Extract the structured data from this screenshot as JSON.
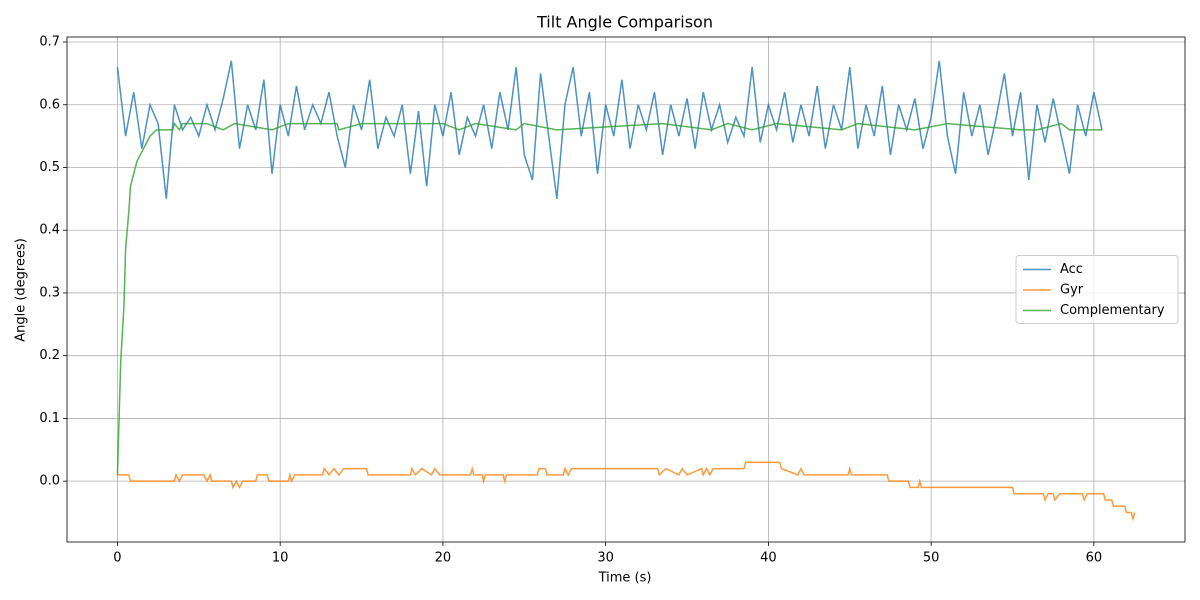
{
  "chart_data": {
    "type": "line",
    "title": "Tilt Angle Comparison",
    "x_label": "Time (s)",
    "y_label": "Angle (degrees)",
    "xlim": [
      -3.1,
      65.6
    ],
    "ylim": [
      -0.097,
      0.708
    ],
    "xticks": [
      0,
      10,
      20,
      30,
      40,
      50,
      60
    ],
    "yticks": [
      {
        "value": 0,
        "label": "0.0"
      },
      0.1,
      0.2,
      0.3,
      0.4,
      0.5,
      0.6,
      0.7
    ],
    "grid": true,
    "legend": "center right",
    "series": [
      {
        "name": "Acc",
        "color": "#1f77b4",
        "x": [
          0,
          0.5,
          1,
          1.5,
          2,
          2.5,
          3,
          3.5,
          4,
          4.5,
          5,
          5.5,
          6,
          6.5,
          7,
          7.5,
          8,
          8.5,
          9,
          9.5,
          10,
          10.5,
          11,
          11.5,
          12,
          12.5,
          13,
          13.5,
          14,
          14.5,
          15,
          15.5,
          16,
          16.5,
          17,
          17.5,
          18,
          18.5,
          19,
          19.5,
          20,
          20.5,
          21,
          21.5,
          22,
          22.5,
          23,
          23.5,
          24,
          24.5,
          25,
          25.5,
          26,
          26.5,
          27,
          27.5,
          28,
          28.5,
          29,
          29.5,
          30,
          30.5,
          31,
          31.5,
          32,
          32.5,
          33,
          33.5,
          34,
          34.5,
          35,
          35.5,
          36,
          36.5,
          37,
          37.5,
          38,
          38.5,
          39,
          39.5,
          40,
          40.5,
          41,
          41.5,
          42,
          42.5,
          43,
          43.5,
          44,
          44.5,
          45,
          45.5,
          46,
          46.5,
          47,
          47.5,
          48,
          48.5,
          49,
          49.5,
          50,
          50.5,
          51,
          51.5,
          52,
          52.5,
          53,
          53.5,
          54,
          54.5,
          55,
          55.5,
          56,
          56.5,
          57,
          57.5,
          58,
          58.5,
          59,
          59.5,
          60,
          60.5
        ],
        "values": [
          0.66,
          0.55,
          0.62,
          0.53,
          0.6,
          0.57,
          0.45,
          0.6,
          0.56,
          0.58,
          0.55,
          0.6,
          0.56,
          0.61,
          0.67,
          0.53,
          0.6,
          0.56,
          0.64,
          0.49,
          0.6,
          0.55,
          0.63,
          0.56,
          0.6,
          0.57,
          0.62,
          0.55,
          0.5,
          0.6,
          0.56,
          0.64,
          0.53,
          0.58,
          0.55,
          0.6,
          0.49,
          0.59,
          0.47,
          0.6,
          0.55,
          0.62,
          0.52,
          0.58,
          0.55,
          0.6,
          0.53,
          0.62,
          0.56,
          0.66,
          0.52,
          0.48,
          0.65,
          0.55,
          0.45,
          0.6,
          0.66,
          0.55,
          0.62,
          0.49,
          0.6,
          0.55,
          0.64,
          0.53,
          0.6,
          0.56,
          0.62,
          0.52,
          0.6,
          0.55,
          0.61,
          0.53,
          0.62,
          0.56,
          0.6,
          0.54,
          0.58,
          0.55,
          0.66,
          0.54,
          0.6,
          0.56,
          0.62,
          0.54,
          0.6,
          0.55,
          0.63,
          0.53,
          0.6,
          0.56,
          0.66,
          0.53,
          0.6,
          0.55,
          0.63,
          0.52,
          0.6,
          0.56,
          0.61,
          0.53,
          0.58,
          0.67,
          0.55,
          0.49,
          0.62,
          0.55,
          0.6,
          0.52,
          0.58,
          0.65,
          0.55,
          0.62,
          0.48,
          0.6,
          0.54,
          0.61,
          0.55,
          0.49,
          0.6,
          0.55,
          0.62,
          0.56
        ]
      },
      {
        "name": "Gyr",
        "color": "#ff7f0e",
        "x": [
          0,
          0.7,
          0.8,
          3.5,
          3.6,
          3.8,
          4,
          5.3,
          5.5,
          5.7,
          5.8,
          7,
          7.1,
          7.3,
          7.5,
          7.7,
          8.5,
          8.6,
          9.2,
          9.3,
          10.5,
          10.6,
          10.7,
          10.9,
          12.6,
          12.7,
          13,
          13.3,
          13.6,
          13.9,
          15.3,
          15.4,
          18,
          18.1,
          18.3,
          18.7,
          19.3,
          19.5,
          19.8,
          21.7,
          21.8,
          21.9,
          22.4,
          22.5,
          22.6,
          23.7,
          23.8,
          23.9,
          25.8,
          25.9,
          26.3,
          26.4,
          27.4,
          27.5,
          27.7,
          27.9,
          33.2,
          33.3,
          33.7,
          34.5,
          34.7,
          35,
          35.9,
          36,
          36.2,
          36.4,
          36.6,
          38.5,
          38.6,
          40.7,
          40.8,
          41.8,
          42,
          42.2,
          44.9,
          45,
          45.1,
          47.3,
          47.4,
          48.6,
          48.7,
          49.2,
          49.3,
          49.4,
          55,
          55.1,
          56.9,
          57,
          57.2,
          57.5,
          57.6,
          57.9,
          59.3,
          59.4,
          59.6,
          60.6,
          60.7,
          61.1,
          61.2,
          61.9,
          62,
          62.3,
          62.4,
          62.5
        ],
        "values": [
          0.01,
          0.01,
          0,
          0,
          0.01,
          0,
          0.01,
          0.01,
          0,
          0.01,
          0,
          0,
          -0.01,
          0,
          -0.01,
          0,
          0,
          0.01,
          0.01,
          0,
          0,
          0.01,
          0,
          0.01,
          0.01,
          0.02,
          0.01,
          0.02,
          0.01,
          0.02,
          0.02,
          0.01,
          0.01,
          0.02,
          0.01,
          0.02,
          0.01,
          0.02,
          0.01,
          0.01,
          0.02,
          0.01,
          0.01,
          0,
          0.01,
          0.01,
          0,
          0.01,
          0.01,
          0.02,
          0.02,
          0.01,
          0.01,
          0.02,
          0.01,
          0.02,
          0.02,
          0.01,
          0.02,
          0.01,
          0.02,
          0.01,
          0.02,
          0.01,
          0.02,
          0.01,
          0.02,
          0.02,
          0.03,
          0.03,
          0.02,
          0.01,
          0.02,
          0.01,
          0.01,
          0.02,
          0.01,
          0.01,
          0,
          0,
          -0.01,
          -0.01,
          0,
          -0.01,
          -0.01,
          -0.02,
          -0.02,
          -0.03,
          -0.02,
          -0.02,
          -0.03,
          -0.02,
          -0.02,
          -0.03,
          -0.02,
          -0.02,
          -0.03,
          -0.03,
          -0.04,
          -0.04,
          -0.05,
          -0.05,
          -0.06,
          -0.05
        ]
      },
      {
        "name": "Complementary",
        "color": "#2ca02c",
        "x": [
          0,
          0.1,
          0.2,
          0.4,
          0.5,
          0.7,
          0.8,
          1,
          1.2,
          1.4,
          1.6,
          1.8,
          2,
          2.4,
          3.4,
          3.5,
          3.8,
          4,
          5.5,
          6.5,
          7.2,
          9.5,
          10.5,
          13.5,
          13.6,
          15,
          20,
          21,
          22,
          24.5,
          25,
          27,
          33.5,
          36.5,
          37.5,
          39,
          40.5,
          44.5,
          45.5,
          49,
          51,
          55.5,
          56.5,
          58,
          58.5,
          60.5
        ],
        "values": [
          0.01,
          0.1,
          0.19,
          0.28,
          0.37,
          0.43,
          0.47,
          0.49,
          0.51,
          0.52,
          0.53,
          0.54,
          0.55,
          0.56,
          0.56,
          0.57,
          0.56,
          0.57,
          0.57,
          0.56,
          0.57,
          0.56,
          0.57,
          0.57,
          0.56,
          0.57,
          0.57,
          0.56,
          0.57,
          0.56,
          0.57,
          0.56,
          0.57,
          0.56,
          0.57,
          0.56,
          0.57,
          0.56,
          0.57,
          0.56,
          0.57,
          0.56,
          0.56,
          0.57,
          0.56,
          0.56
        ]
      }
    ]
  }
}
